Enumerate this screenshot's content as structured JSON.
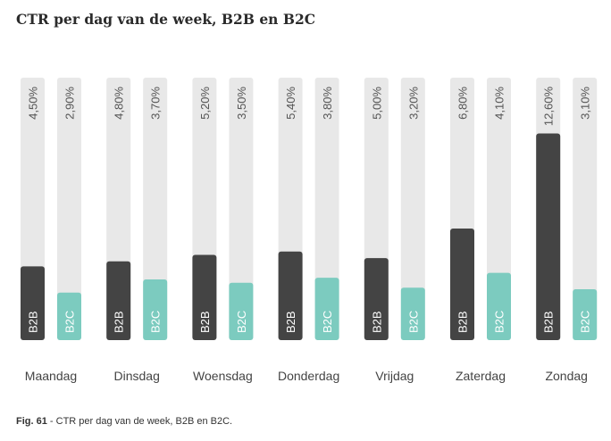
{
  "chart_data": {
    "type": "bar",
    "title": "CTR per dag van de week, B2B en B2C",
    "categories": [
      "Maandag",
      "Dinsdag",
      "Woensdag",
      "Donderdag",
      "Vrijdag",
      "Zaterdag",
      "Zondag"
    ],
    "series": [
      {
        "name": "B2B",
        "values": [
          4.5,
          4.8,
          5.2,
          5.4,
          5.0,
          6.8,
          12.6
        ],
        "labels": [
          "4,50%",
          "4,80%",
          "5,20%",
          "5,40%",
          "5,00%",
          "6,80%",
          "12,60%"
        ],
        "color": "#444444"
      },
      {
        "name": "B2C",
        "values": [
          2.9,
          3.7,
          3.5,
          3.8,
          3.2,
          4.1,
          3.1
        ],
        "labels": [
          "2,90%",
          "3,70%",
          "3,50%",
          "3,80%",
          "3,20%",
          "4,10%",
          "3,10%"
        ],
        "color": "#7ccbbf"
      }
    ],
    "track_color": "#e8e8e8",
    "ylim": [
      0,
      16
    ]
  },
  "caption": {
    "fig": "Fig. 61",
    "text": " - CTR per dag van de week, B2B en B2C."
  }
}
